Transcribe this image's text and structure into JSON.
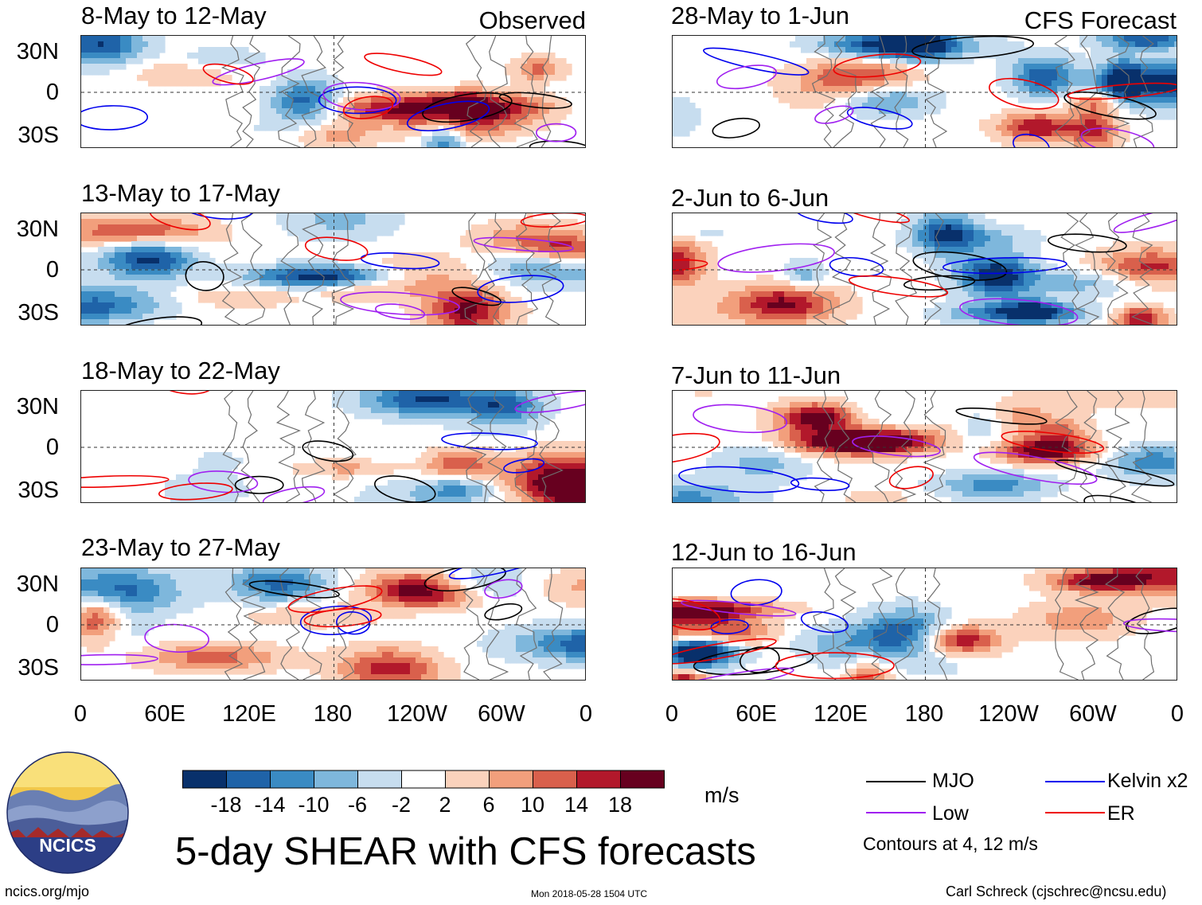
{
  "figure": {
    "title": "5-day SHEAR with CFS forecasts",
    "observed_label": "Observed",
    "forecast_label": "CFS Forecast",
    "units": "m/s",
    "site_url": "ncics.org/mjo",
    "timestamp": "Mon 2018-05-28 1504 UTC",
    "author": "Carl Schreck (cjschrec@ncsu.edu)",
    "logo_text": "NCICS"
  },
  "chart_data": {
    "type": "heatmap",
    "variable": "5-day wind shear anomaly",
    "units": "m/s",
    "panels": [
      {
        "title": "8-May to 12-May",
        "group": "observed",
        "seed": 11
      },
      {
        "title": "13-May to 17-May",
        "group": "observed",
        "seed": 23
      },
      {
        "title": "18-May to 22-May",
        "group": "observed",
        "seed": 37
      },
      {
        "title": "23-May to 27-May",
        "group": "observed",
        "seed": 41
      },
      {
        "title": "28-May to 1-Jun",
        "group": "forecast",
        "seed": 53
      },
      {
        "title": "2-Jun to 6-Jun",
        "group": "forecast",
        "seed": 67
      },
      {
        "title": "7-Jun to 11-Jun",
        "group": "forecast",
        "seed": 71
      },
      {
        "title": "12-Jun to 16-Jun",
        "group": "forecast",
        "seed": 89
      }
    ],
    "lat_ticks": [
      "30N",
      "0",
      "30S"
    ],
    "lon_ticks": [
      "0",
      "60E",
      "120E",
      "180",
      "120W",
      "60W",
      "0"
    ],
    "colorbar": {
      "labels": [
        "-18",
        "-14",
        "-10",
        "-6",
        "-2",
        "2",
        "6",
        "10",
        "14",
        "18"
      ],
      "colors": [
        "#08306b",
        "#1f63a8",
        "#3a8bc3",
        "#7eb7dc",
        "#c7ddef",
        "#ffffff",
        "#fbd2bc",
        "#f29f7c",
        "#d9604c",
        "#b2182b",
        "#67001f"
      ]
    },
    "legend": [
      {
        "label": "MJO",
        "color": "#000000"
      },
      {
        "label": "Kelvin x2",
        "color": "#0000ee"
      },
      {
        "label": "Low",
        "color": "#a020f0"
      },
      {
        "label": "ER",
        "color": "#ee0000"
      }
    ],
    "contour_note": "Contours at 4, 12 m/s"
  }
}
